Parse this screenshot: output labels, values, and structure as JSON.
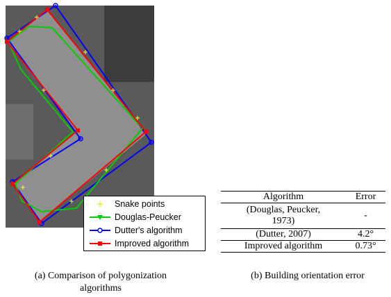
{
  "figure_a": {
    "legend": [
      "Snake points",
      "Douglas-Peucker",
      "Dutter's algorithm",
      "Improved algorithm"
    ],
    "caption": "(a) Comparison of polygonization algorithms"
  },
  "figure_b": {
    "table": {
      "header": [
        "Algorithm",
        "Error"
      ],
      "rows": [
        [
          "(Douglas, Peucker, 1973)",
          "-"
        ],
        [
          "(Dutter, 2007)",
          "4.2°"
        ],
        [
          "Improved algorithm",
          "0.73°"
        ]
      ]
    },
    "caption": "(b) Building orientation error"
  }
}
